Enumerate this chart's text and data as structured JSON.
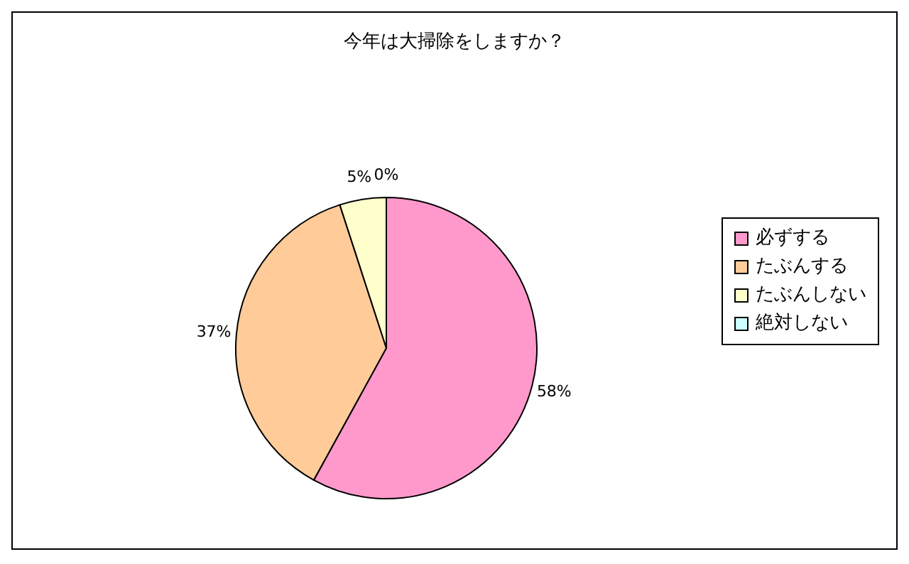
{
  "chart_data": {
    "type": "pie",
    "title": "今年は大掃除をしますか？",
    "categories": [
      "必ずする",
      "たぶんする",
      "たぶんしない",
      "絶対しない"
    ],
    "values": [
      58,
      37,
      5,
      0
    ],
    "colors": [
      "#ff99cc",
      "#ffcc99",
      "#ffffcc",
      "#ccffff"
    ],
    "value_labels": [
      "58%",
      "37%",
      "5%",
      "0%"
    ],
    "legend": "right"
  }
}
